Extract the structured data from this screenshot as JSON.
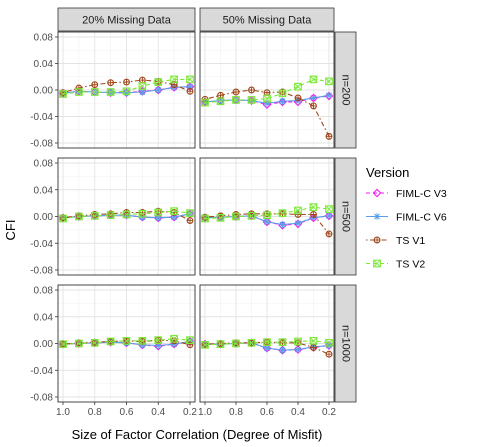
{
  "chart_data": {
    "type": "line",
    "title": "",
    "xlabel": "Size of Factor Correlation (Degree of Misfit)",
    "ylabel": "CFI",
    "x": [
      1.0,
      0.9,
      0.8,
      0.7,
      0.6,
      0.5,
      0.4,
      0.3,
      0.2
    ],
    "x_reversed": true,
    "xlim": [
      1.0,
      0.2
    ],
    "x_tick_values": [
      1.0,
      0.8,
      0.6,
      0.4,
      0.2
    ],
    "x_tick_labels": [
      "1.0",
      "0.8",
      "0.6",
      "0.4",
      "0.2"
    ],
    "ylim": [
      -0.08,
      0.08
    ],
    "y_tick_values": [
      -0.08,
      -0.04,
      0.0,
      0.04,
      0.08
    ],
    "y_tick_labels": [
      "-0.08",
      "-0.04",
      "0.00",
      "0.04",
      "0.08"
    ],
    "grid": true,
    "legend_title": "Version",
    "legend_position": "right",
    "columns": [
      "20% Missing Data",
      "50% Missing Data"
    ],
    "rows": [
      "n=200",
      "n=500",
      "n=1000"
    ],
    "series_styles": [
      {
        "name": "FIML-C V3",
        "color": "#f019f0",
        "marker": "diamond",
        "line": "dashed"
      },
      {
        "name": "FIML-C V6",
        "color": "#5a9de8",
        "marker": "asterisk",
        "line": "solid"
      },
      {
        "name": "TS V1",
        "color": "#a0481c",
        "marker": "circle-plus",
        "line": "dotdash"
      },
      {
        "name": "TS V2",
        "color": "#7be836",
        "marker": "square-x",
        "line": "dashed"
      }
    ],
    "panels": [
      {
        "row": "n=200",
        "col": "20% Missing Data",
        "series": [
          {
            "name": "FIML-C V3",
            "values": [
              -0.005,
              -0.002,
              -0.003,
              -0.004,
              -0.004,
              -0.002,
              0.0,
              0.004,
              0.005
            ]
          },
          {
            "name": "FIML-C V6",
            "values": [
              -0.005,
              -0.002,
              -0.003,
              -0.004,
              -0.004,
              -0.003,
              0.0,
              0.004,
              0.005
            ]
          },
          {
            "name": "TS V1",
            "values": [
              -0.004,
              0.003,
              0.008,
              0.011,
              0.012,
              0.015,
              0.013,
              0.008,
              -0.002
            ]
          },
          {
            "name": "TS V2",
            "values": [
              -0.006,
              -0.003,
              -0.003,
              -0.003,
              -0.002,
              0.006,
              0.012,
              0.016,
              0.016
            ]
          }
        ]
      },
      {
        "row": "n=200",
        "col": "50% Missing Data",
        "series": [
          {
            "name": "FIML-C V3",
            "values": [
              -0.018,
              -0.016,
              -0.015,
              -0.016,
              -0.022,
              -0.018,
              -0.018,
              -0.012,
              -0.009
            ]
          },
          {
            "name": "FIML-C V6",
            "values": [
              -0.018,
              -0.016,
              -0.015,
              -0.016,
              -0.02,
              -0.017,
              -0.016,
              -0.012,
              -0.008
            ]
          },
          {
            "name": "TS V1",
            "values": [
              -0.014,
              -0.008,
              -0.003,
              0.0,
              -0.004,
              -0.003,
              -0.012,
              -0.024,
              -0.07
            ]
          },
          {
            "name": "TS V2",
            "values": [
              -0.019,
              -0.017,
              -0.015,
              -0.015,
              -0.013,
              -0.005,
              0.005,
              0.016,
              0.013
            ]
          }
        ]
      },
      {
        "row": "n=500",
        "col": "20% Missing Data",
        "series": [
          {
            "name": "FIML-C V3",
            "values": [
              -0.002,
              0.0,
              0.001,
              0.002,
              0.002,
              -0.001,
              -0.002,
              -0.001,
              0.004
            ]
          },
          {
            "name": "FIML-C V6",
            "values": [
              -0.002,
              0.0,
              0.001,
              0.002,
              0.002,
              -0.001,
              -0.002,
              -0.001,
              0.004
            ]
          },
          {
            "name": "TS V1",
            "values": [
              -0.002,
              0.001,
              0.003,
              0.004,
              0.006,
              0.006,
              0.008,
              0.006,
              -0.006
            ]
          },
          {
            "name": "TS V2",
            "values": [
              -0.003,
              0.0,
              0.001,
              0.002,
              0.003,
              0.004,
              0.006,
              0.008,
              0.005
            ]
          }
        ]
      },
      {
        "row": "n=500",
        "col": "50% Missing Data",
        "series": [
          {
            "name": "FIML-C V3",
            "values": [
              -0.002,
              -0.001,
              0.0,
              0.001,
              -0.008,
              -0.013,
              -0.011,
              -0.002,
              0.001
            ]
          },
          {
            "name": "FIML-C V6",
            "values": [
              -0.002,
              -0.001,
              0.0,
              0.001,
              -0.008,
              -0.012,
              -0.01,
              -0.002,
              0.001
            ]
          },
          {
            "name": "TS V1",
            "values": [
              -0.001,
              0.001,
              0.003,
              0.004,
              0.004,
              0.004,
              0.003,
              0.003,
              -0.026
            ]
          },
          {
            "name": "TS V2",
            "values": [
              -0.003,
              -0.002,
              0.0,
              0.001,
              0.002,
              0.005,
              0.009,
              0.014,
              0.011
            ]
          }
        ]
      },
      {
        "row": "n=1000",
        "col": "20% Missing Data",
        "series": [
          {
            "name": "FIML-C V3",
            "values": [
              -0.001,
              0.0,
              0.001,
              0.002,
              0.001,
              -0.002,
              -0.004,
              -0.001,
              0.003
            ]
          },
          {
            "name": "FIML-C V6",
            "values": [
              -0.001,
              0.0,
              0.001,
              0.002,
              0.001,
              -0.002,
              -0.003,
              -0.001,
              0.003
            ]
          },
          {
            "name": "TS V1",
            "values": [
              -0.001,
              0.001,
              0.002,
              0.003,
              0.004,
              0.003,
              0.005,
              0.004,
              -0.002
            ]
          },
          {
            "name": "TS V2",
            "values": [
              -0.001,
              0.0,
              0.001,
              0.003,
              0.004,
              0.004,
              0.005,
              0.007,
              0.005
            ]
          }
        ]
      },
      {
        "row": "n=1000",
        "col": "50% Missing Data",
        "series": [
          {
            "name": "FIML-C V3",
            "values": [
              -0.001,
              -0.001,
              0.0,
              0.001,
              -0.007,
              -0.01,
              -0.009,
              -0.006,
              -0.003
            ]
          },
          {
            "name": "FIML-C V6",
            "values": [
              -0.001,
              -0.001,
              0.0,
              0.001,
              -0.007,
              -0.01,
              -0.009,
              -0.005,
              -0.003
            ]
          },
          {
            "name": "TS V1",
            "values": [
              -0.001,
              0.0,
              0.001,
              0.001,
              0.002,
              0.001,
              0.001,
              -0.006,
              -0.016
            ]
          },
          {
            "name": "TS V2",
            "values": [
              -0.002,
              -0.001,
              0.0,
              0.001,
              0.002,
              0.002,
              0.003,
              0.004,
              0.001
            ]
          }
        ]
      }
    ]
  }
}
